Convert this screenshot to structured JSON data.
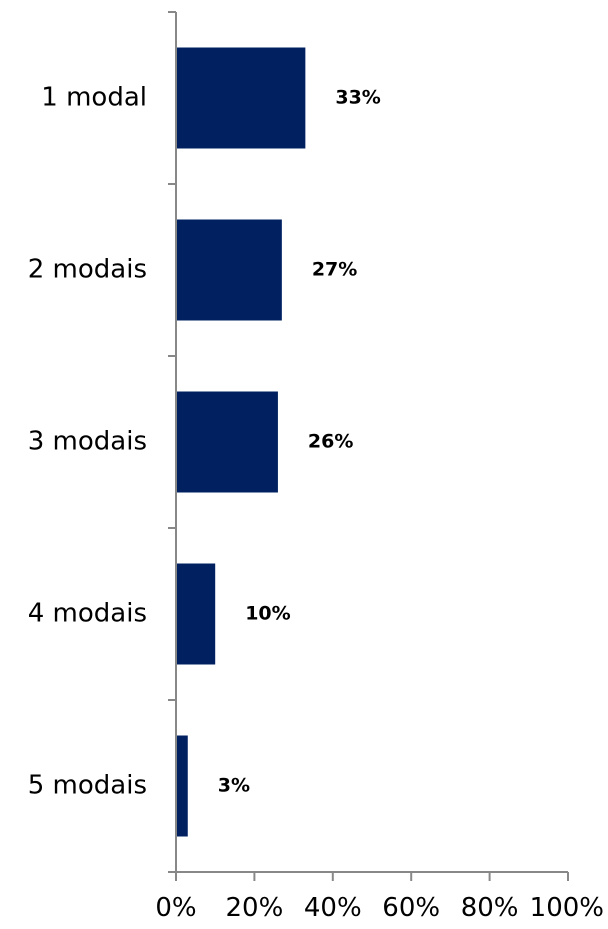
{
  "chart_data": {
    "type": "bar",
    "orientation": "horizontal",
    "categories": [
      "1 modal",
      "2 modais",
      "3 modais",
      "4 modais",
      "5 modais"
    ],
    "values": [
      33,
      27,
      26,
      10,
      3
    ],
    "value_labels": [
      "33%",
      "27%",
      "26%",
      "10%",
      "3%"
    ],
    "xlim": [
      0,
      100
    ],
    "xticks": [
      0,
      20,
      40,
      60,
      80,
      100
    ],
    "xtick_labels": [
      "0%",
      "20%",
      "40%",
      "60%",
      "80%",
      "100%"
    ],
    "bar_color": "#002060",
    "grid": false,
    "legend": "none"
  }
}
